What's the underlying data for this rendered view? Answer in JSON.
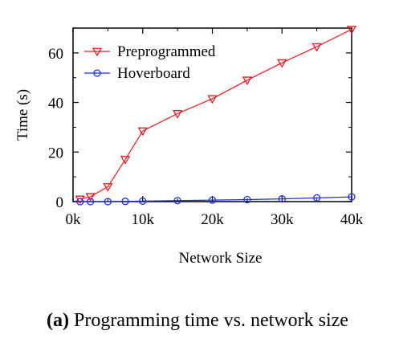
{
  "chart_data": {
    "type": "line",
    "xlabel": "Network Size",
    "ylabel": "Time (s)",
    "xlim": [
      0,
      40000
    ],
    "ylim": [
      0,
      70
    ],
    "x_ticks": [
      {
        "value": 0,
        "label": "0k"
      },
      {
        "value": 10000,
        "label": "10k"
      },
      {
        "value": 20000,
        "label": "20k"
      },
      {
        "value": 30000,
        "label": "30k"
      },
      {
        "value": 40000,
        "label": "40k"
      }
    ],
    "y_ticks": [
      {
        "value": 0,
        "label": "0"
      },
      {
        "value": 20,
        "label": "20"
      },
      {
        "value": 40,
        "label": "40"
      },
      {
        "value": 60,
        "label": "60"
      }
    ],
    "legend_position": "top-left",
    "grid": false,
    "series": [
      {
        "name": "Preprogrammed",
        "color": "#e8191e",
        "marker": "triangle-down",
        "x": [
          1000,
          2500,
          5000,
          7500,
          10000,
          15000,
          20000,
          25000,
          30000,
          35000,
          40000
        ],
        "y": [
          1,
          2,
          6,
          17,
          28.5,
          35.5,
          41.5,
          49,
          56,
          62.5,
          69.5
        ]
      },
      {
        "name": "Hoverboard",
        "color": "#1f2fe0",
        "marker": "circle",
        "x": [
          1000,
          2500,
          5000,
          7500,
          10000,
          15000,
          20000,
          25000,
          30000,
          35000,
          40000
        ],
        "y": [
          0,
          0,
          0,
          0.1,
          0.2,
          0.4,
          0.6,
          0.8,
          1.1,
          1.5,
          1.9
        ]
      }
    ]
  },
  "caption": {
    "label": "(a)",
    "text": " Programming time vs. network size"
  }
}
